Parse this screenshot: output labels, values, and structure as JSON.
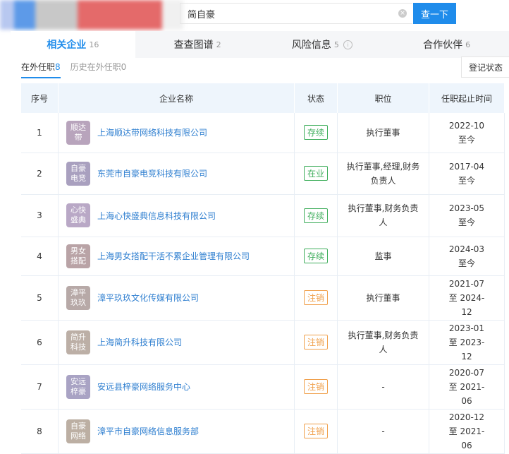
{
  "search": {
    "value": "简自豪",
    "button": "查一下"
  },
  "tabs": [
    {
      "label": "相关企业",
      "count": "16"
    },
    {
      "label": "查查图谱",
      "count": "2"
    },
    {
      "label": "风险信息",
      "count": "5"
    },
    {
      "label": "合作伙伴",
      "count": "6"
    }
  ],
  "subtabs": [
    {
      "label": "在外任职",
      "count": "8"
    },
    {
      "label": "历史在外任职",
      "count": "0"
    }
  ],
  "filter": "登记状态",
  "headers": [
    "序号",
    "企业名称",
    "状态",
    "职位",
    "任职起止时间"
  ],
  "colors": {
    "accent": "#1f8ceb",
    "active_status": "#3fae5c",
    "cancelled_status": "#f0a04b"
  },
  "rows": [
    {
      "no": "1",
      "logo": "顺达带",
      "logo_color": "#b8a4bc",
      "name": "上海顺达带网络科技有限公司",
      "status": "存续",
      "status_type": "active",
      "position": "执行董事",
      "period": "2022-10 至今"
    },
    {
      "no": "2",
      "logo": "自豪电竞",
      "logo_color": "#a9a0bf",
      "name": "东莞市自豪电竞科技有限公司",
      "status": "在业",
      "status_type": "active",
      "position": "执行董事,经理,财务负责人",
      "period": "2017-04 至今"
    },
    {
      "no": "3",
      "logo": "心快盛典",
      "logo_color": "#b9a8c6",
      "name": "上海心快盛典信息科技有限公司",
      "status": "存续",
      "status_type": "active",
      "position": "执行董事,财务负责人",
      "period": "2023-05 至今"
    },
    {
      "no": "4",
      "logo": "男女搭配",
      "logo_color": "#b9a3a6",
      "name": "上海男女搭配干活不累企业管理有限公司",
      "status": "存续",
      "status_type": "active",
      "position": "监事",
      "period": "2024-03 至今"
    },
    {
      "no": "5",
      "logo": "漳平玖玖",
      "logo_color": "#b7a9a7",
      "name": "漳平玖玖文化传媒有限公司",
      "status": "注销",
      "status_type": "cancelled",
      "position": "执行董事",
      "period": "2021-07 至 2024-12"
    },
    {
      "no": "6",
      "logo": "简升科技",
      "logo_color": "#bcafa6",
      "name": "上海简升科技有限公司",
      "status": "注销",
      "status_type": "cancelled",
      "position": "执行董事,财务负责人",
      "period": "2023-01 至 2023-12"
    },
    {
      "no": "7",
      "logo": "安远梓豪",
      "logo_color": "#a9a3c4",
      "name": "安远县梓豪网络服务中心",
      "status": "注销",
      "status_type": "cancelled",
      "position": "-",
      "period": "2020-07 至 2021-06"
    },
    {
      "no": "8",
      "logo": "自豪网络",
      "logo_color": "#bcafa3",
      "name": "漳平市自豪网络信息服务部",
      "status": "注销",
      "status_type": "cancelled",
      "position": "-",
      "period": "2020-12 至 2021-06"
    }
  ]
}
